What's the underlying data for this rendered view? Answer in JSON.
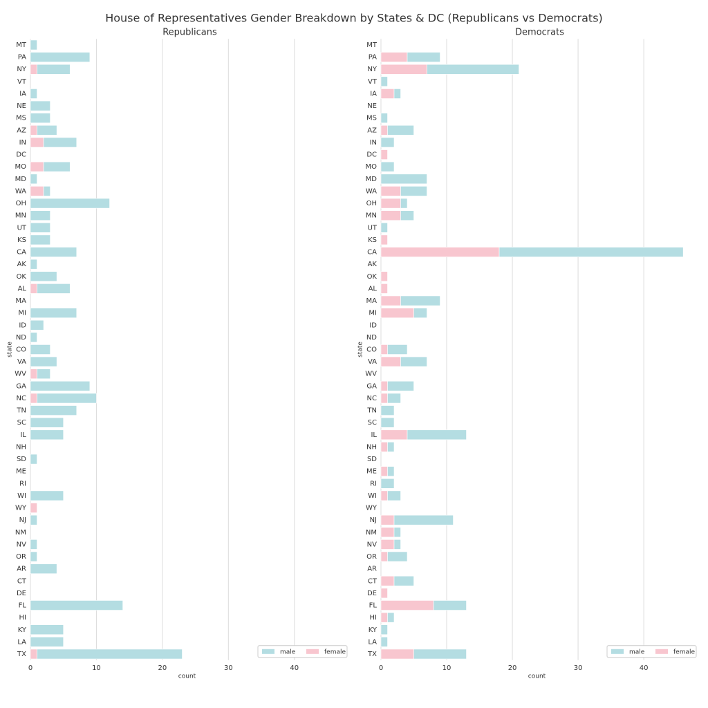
{
  "title": "House of Representatives Gender Breakdown by States & DC (Republicans vs Democrats)",
  "chart_data": [
    {
      "type": "stacked-barh",
      "title": "Republicans",
      "xlabel": "count",
      "ylabel": "state",
      "categories": [
        "MT",
        "PA",
        "NY",
        "VT",
        "IA",
        "NE",
        "MS",
        "AZ",
        "IN",
        "DC",
        "MO",
        "MD",
        "WA",
        "OH",
        "MN",
        "UT",
        "KS",
        "CA",
        "AK",
        "OK",
        "AL",
        "MA",
        "MI",
        "ID",
        "ND",
        "CO",
        "VA",
        "WV",
        "GA",
        "NC",
        "TN",
        "SC",
        "IL",
        "NH",
        "SD",
        "ME",
        "RI",
        "WI",
        "WY",
        "NJ",
        "NM",
        "NV",
        "OR",
        "AR",
        "CT",
        "DE",
        "FL",
        "HI",
        "KY",
        "LA",
        "TX"
      ],
      "series": [
        {
          "name": "male",
          "color": "#b4dde2",
          "values": [
            1,
            9,
            5,
            0,
            1,
            3,
            3,
            3,
            5,
            0,
            4,
            1,
            1,
            12,
            3,
            3,
            3,
            7,
            1,
            4,
            5,
            0,
            7,
            2,
            1,
            3,
            4,
            2,
            9,
            9,
            7,
            5,
            5,
            0,
            1,
            0,
            0,
            5,
            0,
            1,
            0,
            1,
            1,
            4,
            0,
            0,
            14,
            0,
            5,
            5,
            22
          ]
        },
        {
          "name": "female",
          "color": "#f8c6cf",
          "values": [
            0,
            0,
            1,
            0,
            0,
            0,
            0,
            1,
            2,
            0,
            2,
            0,
            2,
            0,
            0,
            0,
            0,
            0,
            0,
            0,
            1,
            0,
            0,
            0,
            0,
            0,
            0,
            1,
            0,
            1,
            0,
            0,
            0,
            0,
            0,
            0,
            0,
            0,
            1,
            0,
            0,
            0,
            0,
            0,
            0,
            0,
            0,
            0,
            0,
            0,
            1
          ]
        }
      ],
      "xlim": [
        0,
        48.3
      ],
      "xticks": [
        0,
        10,
        20,
        30,
        40
      ],
      "grid": true,
      "legend": "lower right"
    },
    {
      "type": "stacked-barh",
      "title": "Democrats",
      "xlabel": "count",
      "ylabel": "state",
      "categories": [
        "MT",
        "PA",
        "NY",
        "VT",
        "IA",
        "NE",
        "MS",
        "AZ",
        "IN",
        "DC",
        "MO",
        "MD",
        "WA",
        "OH",
        "MN",
        "UT",
        "KS",
        "CA",
        "AK",
        "OK",
        "AL",
        "MA",
        "MI",
        "ID",
        "ND",
        "CO",
        "VA",
        "WV",
        "GA",
        "NC",
        "TN",
        "SC",
        "IL",
        "NH",
        "SD",
        "ME",
        "RI",
        "WI",
        "WY",
        "NJ",
        "NM",
        "NV",
        "OR",
        "AR",
        "CT",
        "DE",
        "FL",
        "HI",
        "KY",
        "LA",
        "TX"
      ],
      "series": [
        {
          "name": "male",
          "color": "#b4dde2",
          "values": [
            0,
            5,
            14,
            1,
            1,
            0,
            1,
            4,
            2,
            0,
            2,
            7,
            4,
            1,
            2,
            1,
            0,
            28,
            0,
            0,
            0,
            6,
            2,
            0,
            0,
            3,
            4,
            0,
            4,
            2,
            2,
            2,
            9,
            1,
            0,
            1,
            2,
            2,
            0,
            9,
            1,
            1,
            3,
            0,
            3,
            0,
            5,
            1,
            1,
            1,
            8
          ]
        },
        {
          "name": "female",
          "color": "#f8c6cf",
          "values": [
            0,
            4,
            7,
            0,
            2,
            0,
            0,
            1,
            0,
            1,
            0,
            0,
            3,
            3,
            3,
            0,
            1,
            18,
            0,
            1,
            1,
            3,
            5,
            0,
            0,
            1,
            3,
            0,
            1,
            1,
            0,
            0,
            4,
            1,
            0,
            1,
            0,
            1,
            0,
            2,
            2,
            2,
            1,
            0,
            2,
            1,
            8,
            1,
            0,
            0,
            5
          ]
        }
      ],
      "xlim": [
        0,
        48.3
      ],
      "xticks": [
        0,
        10,
        20,
        30,
        40
      ],
      "grid": true,
      "legend": "lower right"
    }
  ]
}
